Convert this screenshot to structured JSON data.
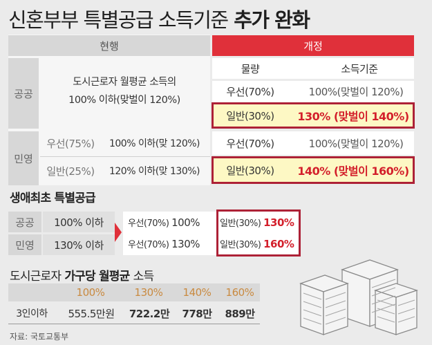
{
  "title": {
    "light": "신혼부부 특별공급 소득기준",
    "bold": "추가 완화"
  },
  "table": {
    "current_header": "현행",
    "revised_header": "개정",
    "quantity_header": "물량",
    "income_header": "소득기준",
    "public": {
      "label": "공공",
      "current_text": "도시근로자 월평균 소득의\n100% 이하(맞벌이 120%)",
      "rows": [
        {
          "quantity": "우선(70%)",
          "income": "100%(맞벌이 120%)"
        },
        {
          "quantity": "일반(30%)",
          "income": "130% (맞벌이 140%)"
        }
      ]
    },
    "private": {
      "label": "민영",
      "current_rows": [
        {
          "type": "우선(75%)",
          "text": "100% 이하(맞 120%)"
        },
        {
          "type": "일반(25%)",
          "text": "120% 이하(맞 130%)"
        }
      ],
      "rows": [
        {
          "quantity": "우선(70%)",
          "income": "100%(맞벌이 120%)"
        },
        {
          "quantity": "일반(30%)",
          "income": "140% (맞벌이 160%)"
        }
      ]
    }
  },
  "first_time": {
    "title": "생애최초 특별공급",
    "rows": [
      {
        "label": "공공",
        "current": "100% 이하",
        "priority": "우선(70%)",
        "priority_value": "100%",
        "general": "일반(30%)",
        "general_value": "130%"
      },
      {
        "label": "민영",
        "current": "130% 이하",
        "priority": "우선(70%)",
        "priority_value": "130%",
        "general": "일반(30%)",
        "general_value": "160%"
      }
    ]
  },
  "income": {
    "title_light": "도시근로자",
    "title_bold": "가구당 월평균",
    "title_end": "소득",
    "percents": [
      "100%",
      "130%",
      "140%",
      "160%"
    ],
    "row_label": "3인이하",
    "values": [
      "555.5만원",
      "722.2만",
      "778만",
      "889만"
    ]
  },
  "source": "자료: 국토교통부",
  "colors": {
    "accent_red": "#e0303a",
    "highlight_border": "#ad2136",
    "highlight_fill": "#fdf8c4",
    "value_red": "#d31f2b"
  },
  "icons": {
    "building": "building-illustration"
  }
}
